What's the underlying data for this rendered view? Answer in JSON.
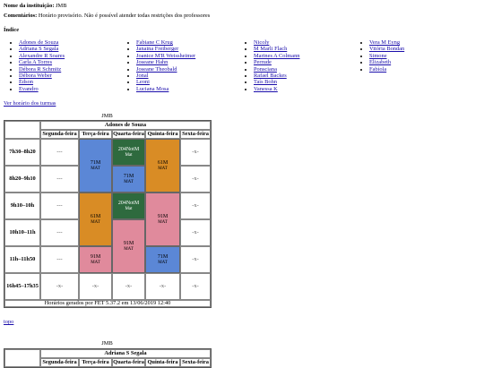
{
  "institution_label": "Nome da instituição:",
  "institution_name": "JMB",
  "comments_label": "Comentários:",
  "comments_text": "Horário provisório. Não é possível atender todas restrições dos professores",
  "index_title": "Índice",
  "index_columns": [
    [
      "Adones de Souza",
      "Adriana S Segala",
      "Alexandre R Soares",
      "Carla A Torres",
      "Débora R Schmitz",
      "Débora Weber",
      "Édson",
      "Evandro"
    ],
    [
      "Fabiane C Krug",
      "Janaina Freiberger",
      "Joanice M'R Weissheimer",
      "Joseane Hahn",
      "Joseane Theobald",
      "Jonal",
      "Leoni",
      "Luciana Mosa"
    ],
    [
      "Nicoly",
      "M Marli Flach",
      "Marines A Colmann",
      "Perrude",
      "Ponsciana",
      "Rafael Backes",
      "Taís Bohn",
      "Vanessa K"
    ],
    [
      "Vera M Eyng",
      "Vitória Bondan",
      "Simone",
      "Elizabeth",
      "Fabíola"
    ]
  ],
  "link_turmas": "Ver horário dos turmas",
  "table1": {
    "caption": "JMB",
    "teacher": "Adones de Souza",
    "days": [
      "Segunda-feira",
      "Terça-feira",
      "Quarta-feira",
      "Quinta-feira",
      "Sexta-feira"
    ],
    "times": [
      "7h30–8h20",
      "8h20–9h10",
      "9h10–10h",
      "10h10–11h",
      "11h–11h50",
      "16h45–17h35"
    ],
    "empty_mark": "---",
    "empty_mark2": "-x-",
    "blocks": [
      {
        "label": "71M",
        "sub": "MAT"
      },
      {
        "label": "204NotM",
        "sub": "Mat"
      },
      {
        "label": "71M",
        "sub": "MAT"
      },
      {
        "label": "61M",
        "sub": "MAT"
      },
      {
        "label": "61M",
        "sub": "MAT"
      },
      {
        "label": "204NotM",
        "sub": "Mat"
      },
      {
        "label": "91M",
        "sub": "MAT"
      },
      {
        "label": "91M",
        "sub": "MAT"
      },
      {
        "label": "91M",
        "sub": "MAT"
      },
      {
        "label": "71M",
        "sub": "MAT"
      }
    ],
    "footer": "Horários gerados por FET 5.37.2 em 13/06/2019 12:40"
  },
  "link_topo": "topo",
  "table2": {
    "caption": "JMB",
    "teacher": "Adriana S Segala",
    "days": [
      "Segunda-feira",
      "Terça-feira",
      "Quarta-feira",
      "Quinta-feira",
      "Sexta-feira"
    ]
  },
  "colors": {
    "blue": "#5b87d6",
    "green": "#2e6a3e",
    "orange": "#d98c25",
    "pink": "#e08a9c",
    "link": "#1a0dab"
  }
}
